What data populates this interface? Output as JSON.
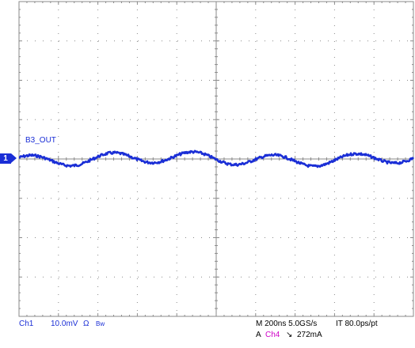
{
  "trace": {
    "label": "B3_OUT",
    "marker_label": "1",
    "color": "#1a2ed6"
  },
  "status": {
    "channel": "Ch1",
    "scale": "10.0mV",
    "impedance": "Ω",
    "bandwidth": "Bw",
    "timebase": "M 200ns 5.0GS/s",
    "interpolation": "IT 80.0ps/pt",
    "trigger_prefix": "A",
    "trigger_source": "Ch4",
    "trigger_slope": "↘",
    "trigger_level": "272mA"
  },
  "colors": {
    "grid": "#8a8a8a",
    "ch1": "#1a2ed6",
    "ch4": "#d000c8",
    "background": "#ffffff"
  }
}
